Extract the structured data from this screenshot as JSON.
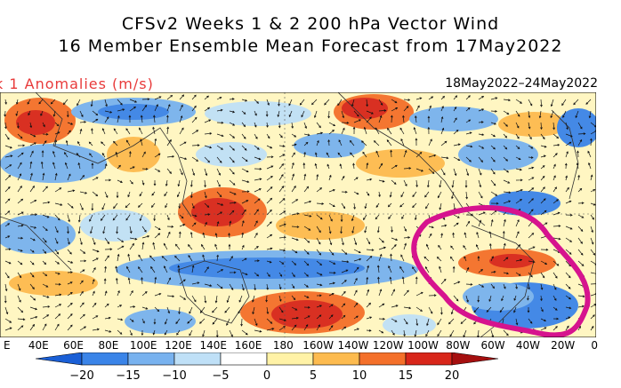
{
  "title_line1": "CFSv2 Weeks 1 & 2 200 hPa Vector Wind",
  "title_line2": "16 Member Ensemble Mean Forecast from 17May2022",
  "subtitle_left": "k 1 Anomalies (m/s)",
  "subtitle_right": "18May2022–24May2022",
  "longitude_labels": [
    "E",
    "40E",
    "60E",
    "80E",
    "100E",
    "120E",
    "140E",
    "160E",
    "180",
    "160W",
    "140W",
    "120W",
    "100W",
    "80W",
    "60W",
    "40W",
    "20W",
    "0"
  ],
  "colorbar": {
    "ticks": [
      "−20",
      "−15",
      "−10",
      "−5",
      "0",
      "5",
      "10",
      "15",
      "20"
    ],
    "colors": [
      "#1a5fd6",
      "#3a84e8",
      "#78b2ef",
      "#bfe0f7",
      "#ffffff",
      "#fff2a6",
      "#fdbb4f",
      "#f4702a",
      "#d8261a",
      "#a50f0f"
    ]
  },
  "annotation": {
    "shape": "freehand-loop",
    "color": "#d6138e"
  },
  "colors": {
    "ocean_bg": "#fff6c2",
    "coast": "#333333",
    "vector": "#111111"
  }
}
